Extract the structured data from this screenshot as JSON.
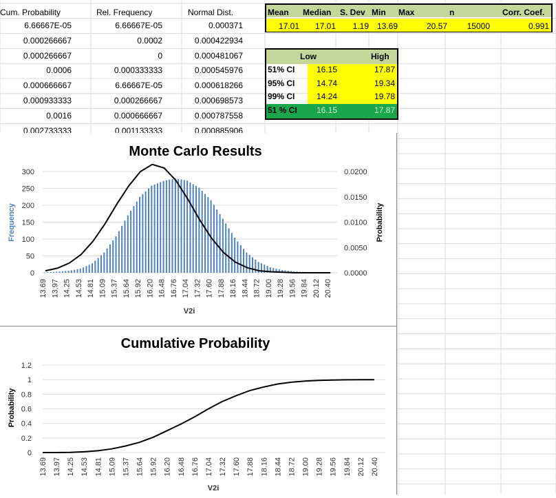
{
  "headers": {
    "cum_prob": "Cum. Probability",
    "rel_freq": "Rel. Frequency",
    "normal_dist": "Normal Dist."
  },
  "rows": [
    {
      "cum": "6.66667E-05",
      "rel": "6.66667E-05",
      "norm": "0.000371"
    },
    {
      "cum": "0.000266667",
      "rel": "0.0002",
      "norm": "0.000422934"
    },
    {
      "cum": "0.000266667",
      "rel": "0",
      "norm": "0.000481067"
    },
    {
      "cum": "0.0006",
      "rel": "0.000333333",
      "norm": "0.000545976"
    },
    {
      "cum": "0.000666667",
      "rel": "6.66667E-05",
      "norm": "0.000618266"
    },
    {
      "cum": "0.000933333",
      "rel": "0.000266667",
      "norm": "0.000698573"
    },
    {
      "cum": "0.0016",
      "rel": "0.000666667",
      "norm": "0.000787558"
    },
    {
      "cum": "0.002733333",
      "rel": "0.001133333",
      "norm": "0.000885906"
    }
  ],
  "stats": {
    "headers": [
      "Mean",
      "Median",
      "S. Dev",
      "Min",
      "Max",
      "n",
      "Corr. Coef."
    ],
    "values": [
      "17.01",
      "17.01",
      "1.19",
      "13.69",
      "20.57",
      "15000",
      "0.991"
    ]
  },
  "ci": {
    "low_label": "Low",
    "high_label": "High",
    "rows": [
      {
        "label": "51% CI",
        "low": "16.15",
        "high": "17.87"
      },
      {
        "label": "95% CI",
        "low": "14.74",
        "high": "19.34"
      },
      {
        "label": "99% CI",
        "low": "14.24",
        "high": "19.78"
      },
      {
        "label": "51 % CI",
        "low": "16.15",
        "high": "17.87"
      }
    ]
  },
  "colors": {
    "header_green": "#c4d79b",
    "value_yellow": "#ffff00",
    "ci_green": "#1aa64a",
    "bar_blue": "#4f81bd",
    "gridline": "#d9d9d9"
  },
  "chart_data": [
    {
      "type": "bar",
      "title": "Monte Carlo Results",
      "xlabel": "V2i",
      "ylabel": "Frequency",
      "y2label": "Probability",
      "ylim": [
        0,
        300
      ],
      "y2lim": [
        0,
        0.02
      ],
      "yticks": [
        "0",
        "50",
        "100",
        "150",
        "200",
        "250",
        "300"
      ],
      "y2ticks": [
        "0.0000",
        "0.0050",
        "0.0100",
        "0.0150",
        "0.0200"
      ],
      "categories": [
        "13.69",
        "13.97",
        "14.25",
        "14.53",
        "14.81",
        "15.09",
        "15.37",
        "15.64",
        "15.92",
        "16.20",
        "16.48",
        "16.76",
        "17.04",
        "17.32",
        "17.60",
        "17.88",
        "18.16",
        "18.44",
        "18.72",
        "19.00",
        "19.28",
        "19.56",
        "19.84",
        "20.12",
        "20.40"
      ],
      "series": [
        {
          "values": [
            1,
            3,
            6,
            12,
            28,
            60,
            108,
            170,
            225,
            258,
            272,
            280,
            273,
            252,
            215,
            160,
            104,
            60,
            32,
            16,
            8,
            4,
            2,
            1,
            0
          ]
        },
        {
          "values": [
            0.0004,
            0.0009,
            0.0019,
            0.0036,
            0.0062,
            0.0096,
            0.0135,
            0.0171,
            0.02,
            0.0214,
            0.0207,
            0.0182,
            0.0145,
            0.0104,
            0.0068,
            0.004,
            0.0021,
            0.001,
            0.0004,
            0.0002,
            0.0001,
            0.0,
            0.0,
            0.0,
            0.0
          ]
        }
      ],
      "grid": true
    },
    {
      "type": "line",
      "title": "Cumulative Probability",
      "xlabel": "V2i",
      "ylabel": "Probability",
      "ylim": [
        0,
        1.2
      ],
      "yticks": [
        "0",
        "0.2",
        "0.4",
        "0.6",
        "0.8",
        "1",
        "1.2"
      ],
      "categories": [
        "13.69",
        "13.97",
        "14.25",
        "14.53",
        "14.81",
        "15.09",
        "15.37",
        "15.64",
        "15.92",
        "16.20",
        "16.48",
        "16.76",
        "17.04",
        "17.32",
        "17.60",
        "17.88",
        "18.16",
        "18.44",
        "18.72",
        "19.00",
        "19.28",
        "19.56",
        "19.84",
        "20.12",
        "20.40"
      ],
      "series": [
        {
          "values": [
            0,
            0,
            0.002,
            0.01,
            0.025,
            0.05,
            0.09,
            0.14,
            0.21,
            0.3,
            0.39,
            0.49,
            0.6,
            0.7,
            0.78,
            0.85,
            0.9,
            0.94,
            0.965,
            0.98,
            0.99,
            0.995,
            0.998,
            1,
            1
          ]
        }
      ],
      "grid": true
    }
  ]
}
